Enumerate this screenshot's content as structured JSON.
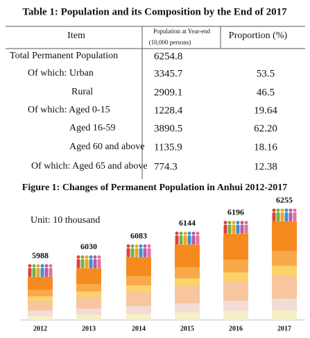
{
  "table": {
    "title": "Table 1: Population and its Composition by the End of 2017",
    "header": {
      "item": "Item",
      "population": "Population at Year-end",
      "population_unit": "(10,000 persons)",
      "proportion": "Proportion (%)"
    },
    "rows": [
      {
        "item": "Total Permanent Population",
        "population": "6254.8"
      },
      {
        "item": "Of which: Urban",
        "population": "3345.7",
        "proportion": "53.5"
      },
      {
        "item": "Rural",
        "population": "2909.1",
        "proportion": "46.5"
      },
      {
        "item": "Of which: Aged 0-15",
        "population": "1228.4",
        "proportion": "19.64"
      },
      {
        "item": "Aged 16-59",
        "population": "3890.5",
        "proportion": "62.20"
      },
      {
        "item": "Aged 60 and above",
        "population": "1135.9",
        "proportion": "18.16"
      },
      {
        "item": "Of which: Aged 65 and above",
        "population": "774.3",
        "proportion": "12.38"
      }
    ]
  },
  "chart_data": {
    "type": "bar",
    "title": "Figure 1: Changes of Permanent Population in Anhui 2012-2017",
    "annotation": "Unit: 10 thousand",
    "categories": [
      "2012",
      "2013",
      "2014",
      "2015",
      "2016",
      "2017"
    ],
    "values": [
      5988,
      6030,
      6083,
      6144,
      6196,
      6255
    ]
  }
}
